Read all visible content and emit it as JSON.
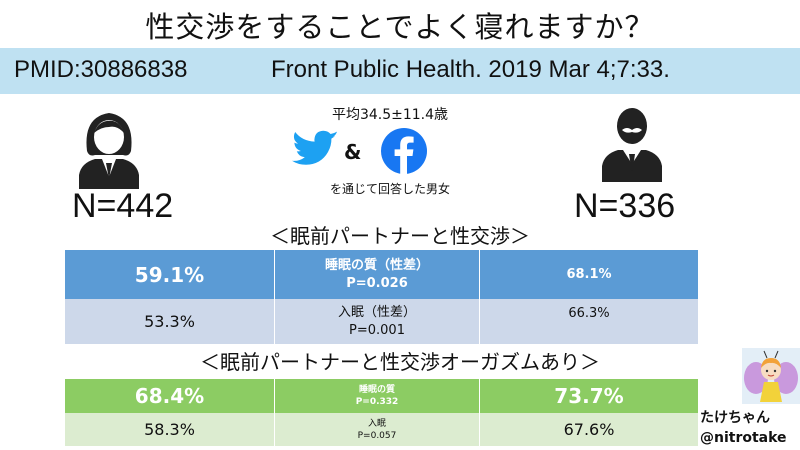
{
  "title": "性交渉をすることでよく寝れますか？",
  "citation": {
    "pmid": "PMID:30886838",
    "journal": "Front Public Health. 2019 Mar 4;7:33."
  },
  "survey": {
    "age": "平均34.5±11.4歳",
    "amp": "&",
    "via": "を通じて回答した男女",
    "female_n": "N=442",
    "male_n": "N=336"
  },
  "icons": {
    "female": "female-person-icon",
    "male": "male-person-icon",
    "twitter": "twitter-bird-icon",
    "facebook": "facebook-f-icon",
    "avatar": "fairy-character-avatar"
  },
  "colors": {
    "bar_blue": "#bfe1f2",
    "table1_header": "#5b9bd5",
    "table1_row": "#cdd8ea",
    "table2_header": "#8ccc63",
    "table2_row": "#dcecd0"
  },
  "section1": {
    "title": "＜眠前パートナーと性交渉＞",
    "rows": [
      {
        "female": "59.1%",
        "label": "睡眠の質（性差）",
        "p": "P=0.026",
        "male": "68.1%"
      },
      {
        "female": "53.3%",
        "label": "入眠（性差）",
        "p": "P=0.001",
        "male": "66.3%"
      }
    ]
  },
  "section2": {
    "title": "＜眠前パートナーと性交渉オーガズムあり＞",
    "rows": [
      {
        "female": "68.4%",
        "label": "睡眠の質",
        "p": "P=0.332",
        "male": "73.7%"
      },
      {
        "female": "58.3%",
        "label": "入眠",
        "p": "P=0.057",
        "male": "67.6%"
      }
    ]
  },
  "author": {
    "name": "たけちゃん",
    "handle": "@nitrotake"
  }
}
